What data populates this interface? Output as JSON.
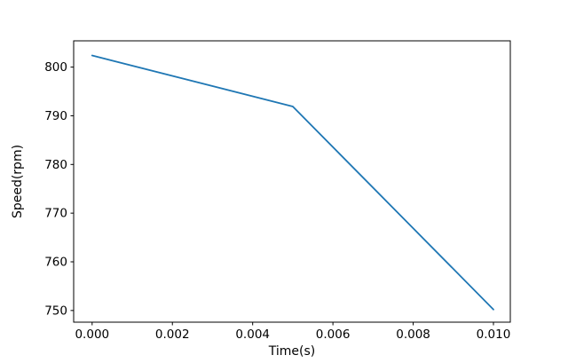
{
  "figure": {
    "background": "#ffffff"
  },
  "chart_data": {
    "type": "line",
    "title": "",
    "xlabel": "Time(s)",
    "ylabel": "Speed(rpm)",
    "x": [
      0.0,
      0.005,
      0.01
    ],
    "y": [
      802.4,
      791.9,
      750.2
    ],
    "series": [
      {
        "name": "speed",
        "color": "#1f77b4"
      }
    ],
    "xticks": {
      "values": [
        0.0,
        0.002,
        0.004,
        0.006,
        0.008,
        0.01
      ],
      "labels": [
        "0.000",
        "0.002",
        "0.004",
        "0.006",
        "0.008",
        "0.010"
      ]
    },
    "yticks": {
      "values": [
        750,
        760,
        770,
        780,
        790,
        800
      ],
      "labels": [
        "750",
        "760",
        "770",
        "780",
        "790",
        "800"
      ]
    },
    "xlim": [
      -0.00046,
      0.01042
    ],
    "ylim": [
      747.6,
      805.4
    ],
    "grid": false,
    "legend": null,
    "line_color": "#1f77b4",
    "line_width": 1.8,
    "spine_color": "#000000",
    "tick_color": "#000000"
  }
}
